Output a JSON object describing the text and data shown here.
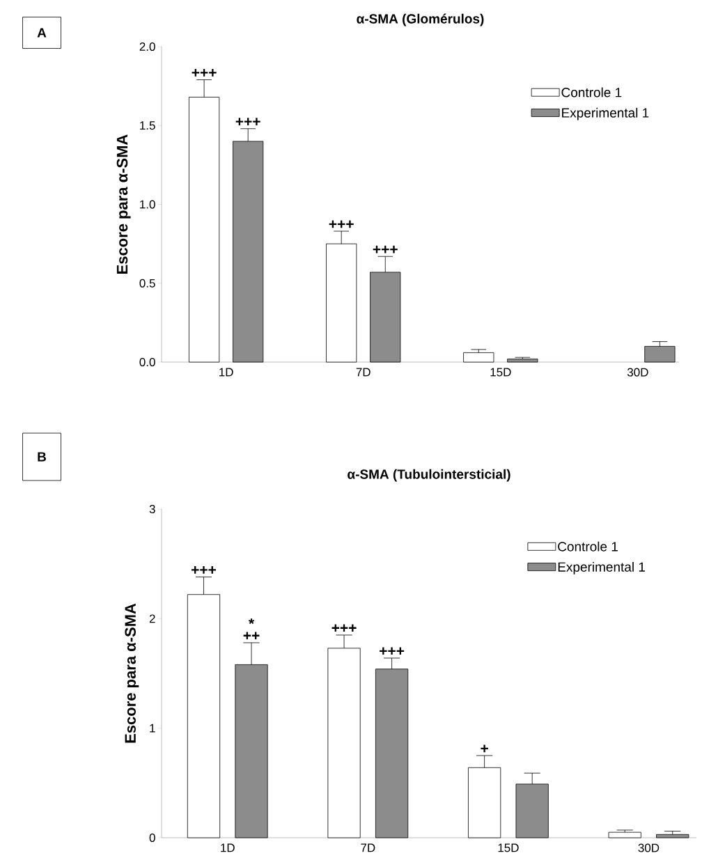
{
  "chart_data": [
    {
      "type": "bar",
      "title": "α-SMA (Glomérulos)",
      "ylabel": "Escore para α-SMA",
      "categories": [
        "1D",
        "7D",
        "15D",
        "30D"
      ],
      "series": [
        {
          "name": "Controle 1",
          "color": "#ffffff",
          "values": [
            1.68,
            0.75,
            0.06,
            null
          ],
          "errors": [
            [
              1.68,
              1.79
            ],
            [
              0.75,
              0.83
            ],
            [
              0.06,
              0.08
            ],
            null
          ]
        },
        {
          "name": "Experimental 1",
          "color": "#8c8c8c",
          "values": [
            1.4,
            0.57,
            0.02,
            0.1
          ],
          "errors": [
            [
              1.4,
              1.48
            ],
            [
              0.57,
              0.67
            ],
            [
              0.02,
              0.03
            ],
            [
              0.1,
              0.13
            ]
          ]
        }
      ],
      "ylim": [
        0,
        2
      ],
      "yticks": [
        {
          "value": 0,
          "label": "0.0"
        },
        0.5,
        {
          "value": 1,
          "label": "1.0"
        },
        1.5,
        {
          "value": 2,
          "label": "2.0"
        }
      ],
      "legend": "top right",
      "grid": false,
      "annotations": [
        "A",
        "+++",
        "+++",
        "+++",
        "+++"
      ]
    },
    {
      "type": "bar",
      "title": "α-SMA (Tubulointersticial)",
      "ylabel": "Escore para α-SMA",
      "categories": [
        "1D",
        "7D",
        "15D",
        "30D"
      ],
      "series": [
        {
          "name": "Controle 1",
          "color": "#ffffff",
          "values": [
            2.22,
            1.73,
            0.64,
            0.05
          ],
          "errors": [
            [
              2.22,
              2.38
            ],
            [
              1.73,
              1.85
            ],
            [
              0.64,
              0.75
            ],
            [
              0.05,
              0.07
            ]
          ]
        },
        {
          "name": "Experimental 1",
          "color": "#8c8c8c",
          "values": [
            1.58,
            1.54,
            0.49,
            0.03
          ],
          "errors": [
            [
              1.58,
              1.78
            ],
            [
              1.54,
              1.64
            ],
            [
              0.49,
              0.59
            ],
            [
              0.03,
              0.06
            ]
          ]
        }
      ],
      "ylim": [
        0,
        3
      ],
      "yticks": [
        0,
        1,
        2,
        3
      ],
      "legend": "top right",
      "grid": false,
      "annotations": [
        "B",
        "+++",
        "++",
        "*",
        "+++",
        "+++",
        "+"
      ]
    }
  ]
}
